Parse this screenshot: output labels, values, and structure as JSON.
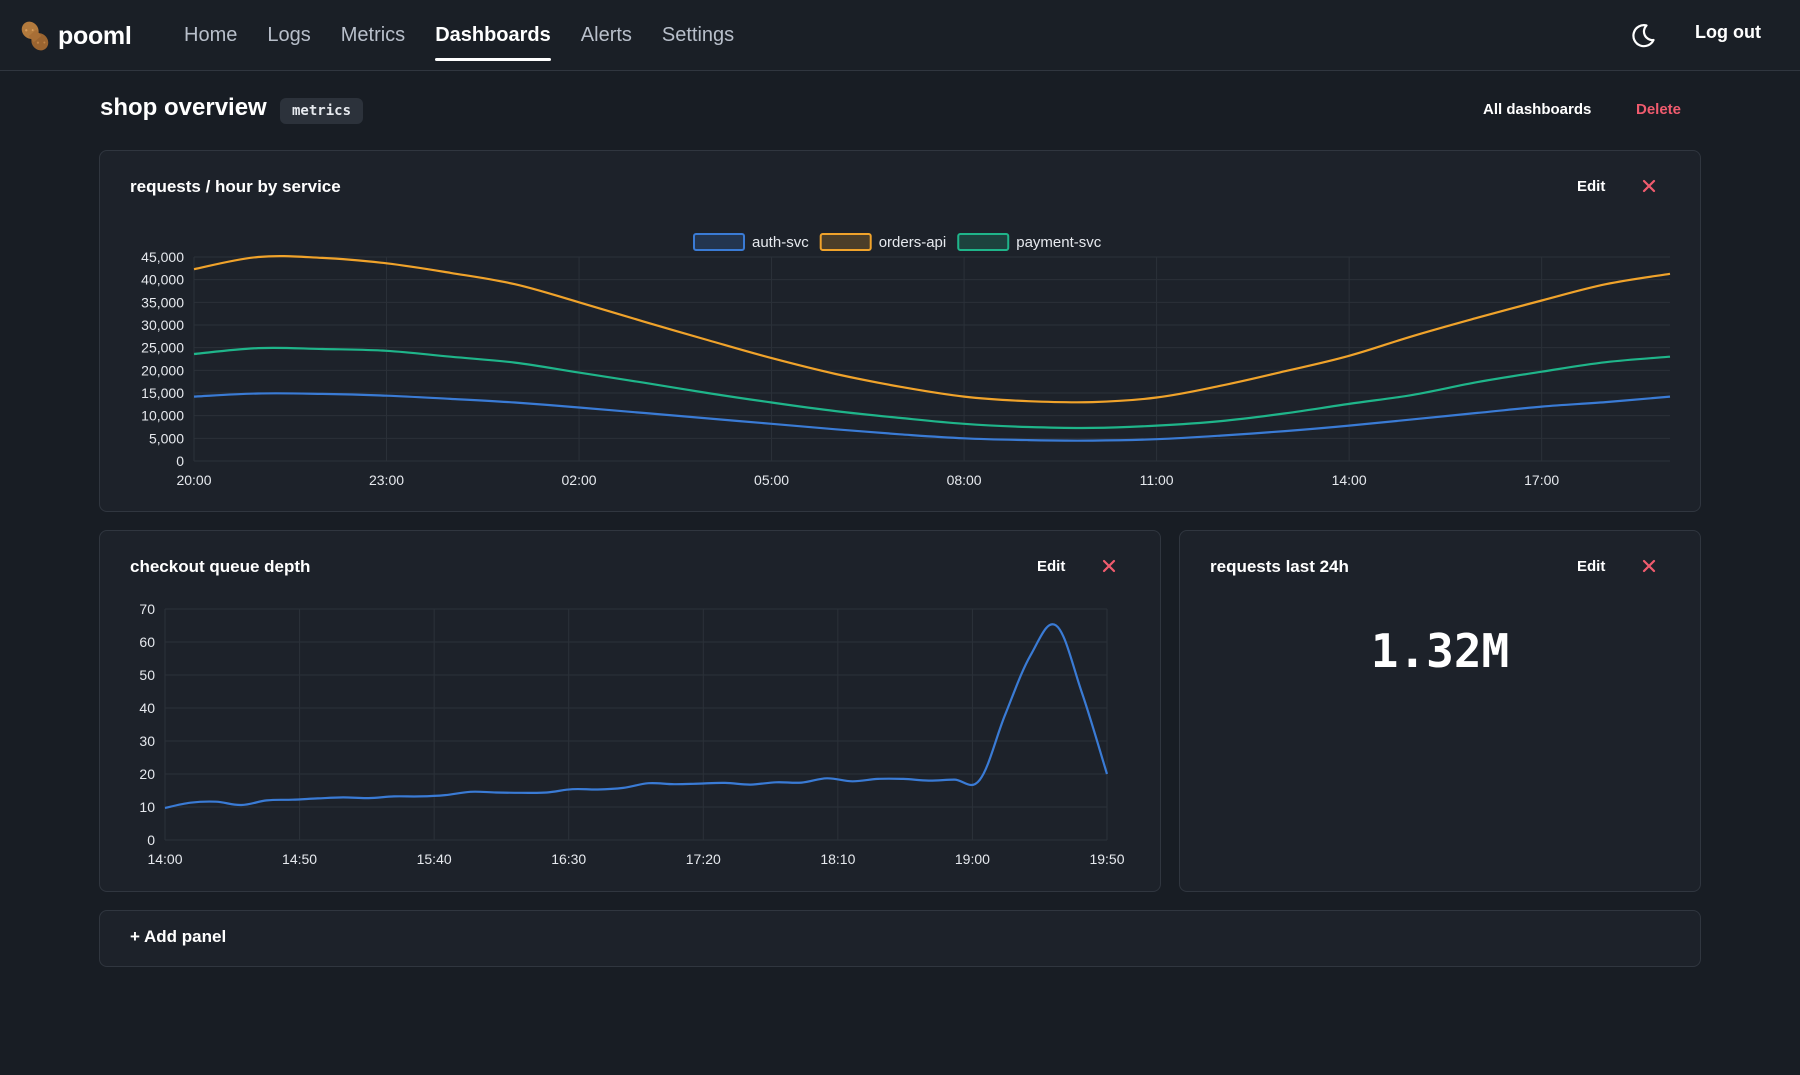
{
  "app": {
    "name": "pooml"
  },
  "nav": {
    "items": [
      {
        "label": "Home",
        "active": false
      },
      {
        "label": "Logs",
        "active": false
      },
      {
        "label": "Metrics",
        "active": false
      },
      {
        "label": "Dashboards",
        "active": true
      },
      {
        "label": "Alerts",
        "active": false
      },
      {
        "label": "Settings",
        "active": false
      }
    ],
    "theme_icon": "moon-icon",
    "logout_label": "Log out"
  },
  "dashboard": {
    "title": "shop overview",
    "badge": "metrics",
    "all_dashboards_label": "All dashboards",
    "delete_label": "Delete"
  },
  "colors": {
    "accent_blue": "#3a7bd5",
    "accent_orange": "#f0a32b",
    "accent_green": "#1fb58a",
    "danger": "#f05b6e"
  },
  "panels": {
    "requests_by_service": {
      "title": "requests / hour by service",
      "edit_label": "Edit"
    },
    "checkout_queue": {
      "title": "checkout queue depth",
      "edit_label": "Edit"
    },
    "requests_24h": {
      "title": "requests last 24h",
      "edit_label": "Edit",
      "value": "1.32M"
    },
    "add_panel_label": "+ Add panel"
  },
  "chart_data": [
    {
      "type": "line",
      "title": "requests / hour by service",
      "legend": "top-center",
      "grid": true,
      "x": [
        "20:00",
        "21:00",
        "22:00",
        "23:00",
        "00:00",
        "01:00",
        "02:00",
        "03:00",
        "04:00",
        "05:00",
        "06:00",
        "07:00",
        "08:00",
        "09:00",
        "10:00",
        "11:00",
        "12:00",
        "13:00",
        "14:00",
        "15:00",
        "16:00",
        "17:00",
        "18:00",
        "19:00"
      ],
      "x_ticks": [
        "20:00",
        "23:00",
        "02:00",
        "05:00",
        "08:00",
        "11:00",
        "14:00",
        "17:00"
      ],
      "y_ticks": [
        "0",
        "5,000",
        "10,000",
        "15,000",
        "20,000",
        "25,000",
        "30,000",
        "35,000",
        "40,000",
        "45,000"
      ],
      "ylim": [
        0,
        45000
      ],
      "series": [
        {
          "name": "auth-svc",
          "color": "#3a7bd5",
          "values": [
            14200,
            14900,
            14800,
            14400,
            13700,
            12900,
            11800,
            10600,
            9400,
            8200,
            7000,
            5900,
            5000,
            4600,
            4500,
            4800,
            5600,
            6600,
            7800,
            9200,
            10600,
            12000,
            13000,
            14200
          ]
        },
        {
          "name": "orders-api",
          "color": "#f0a32b",
          "values": [
            42300,
            45000,
            44800,
            43600,
            41500,
            39000,
            35000,
            30800,
            26700,
            22700,
            19200,
            16400,
            14200,
            13200,
            13000,
            14000,
            16600,
            19800,
            23200,
            27600,
            31600,
            35400,
            39000,
            41300
          ]
        },
        {
          "name": "payment-svc",
          "color": "#1fb58a",
          "values": [
            23600,
            24900,
            24700,
            24300,
            23000,
            21700,
            19500,
            17300,
            15000,
            12900,
            11000,
            9500,
            8200,
            7500,
            7300,
            7800,
            8800,
            10500,
            12600,
            14600,
            17400,
            19700,
            21800,
            23000
          ]
        }
      ]
    },
    {
      "type": "line",
      "title": "checkout queue depth",
      "grid": true,
      "x_ticks": [
        "14:00",
        "14:50",
        "15:40",
        "16:30",
        "17:20",
        "18:10",
        "19:00",
        "19:50"
      ],
      "y_ticks": [
        "0",
        "10",
        "20",
        "30",
        "40",
        "50",
        "60",
        "70"
      ],
      "ylim": [
        0,
        70
      ],
      "series": [
        {
          "name": "",
          "color": "#3a7bd5",
          "values": [
            9.7,
            11.3,
            11.6,
            10.6,
            12,
            12.2,
            12.6,
            12.9,
            12.7,
            13.2,
            13.2,
            13.6,
            14.6,
            14.4,
            14.3,
            14.4,
            15.4,
            15.3,
            15.8,
            17.2,
            16.9,
            17.1,
            17.3,
            16.8,
            17.5,
            17.4,
            18.7,
            17.8,
            18.5,
            18.5,
            18,
            18.3,
            18.2,
            38,
            56,
            65,
            45,
            20
          ]
        }
      ]
    }
  ]
}
